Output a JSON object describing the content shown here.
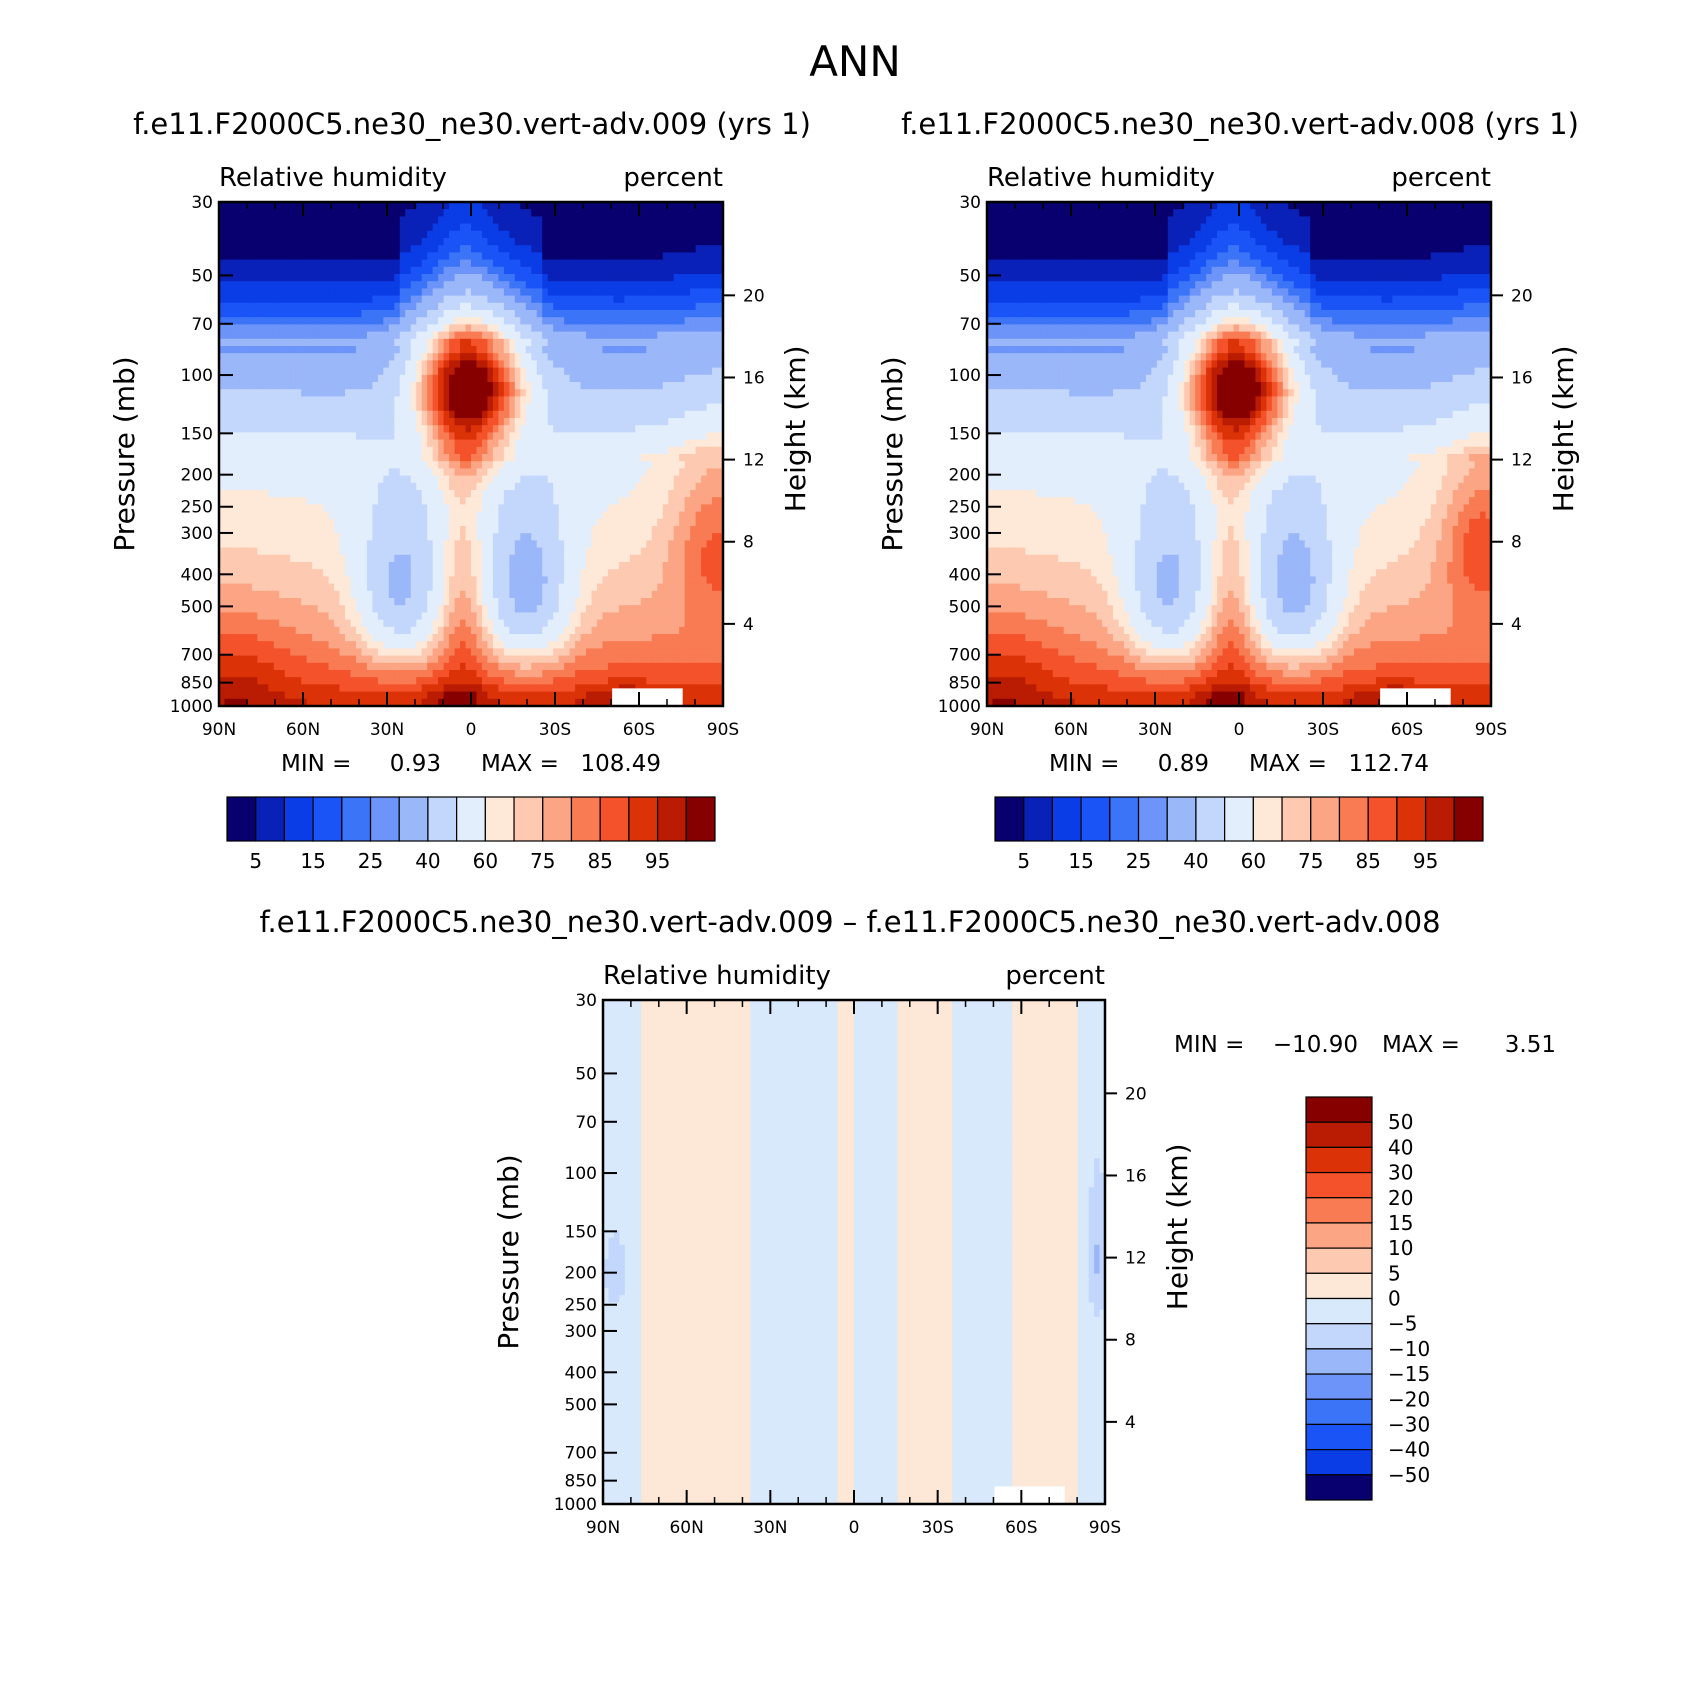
{
  "main_title": "ANN",
  "contour_levels": [
    5,
    10,
    15,
    20,
    25,
    30,
    40,
    50,
    60,
    65,
    70,
    75,
    80,
    85,
    90,
    95
  ],
  "abs_colors": [
    "#08006e",
    "#0a21b8",
    "#0b3de6",
    "#1b54f6",
    "#3c74f7",
    "#6d94f8",
    "#9ab7f9",
    "#c2d7fb",
    "#e2eefc",
    "#fee8d8",
    "#fdc9b0",
    "#fca584",
    "#f97b53",
    "#f3522a",
    "#db3207",
    "#b91c02",
    "#870000"
  ],
  "diff_levels": [
    -50,
    -40,
    -30,
    -20,
    -15,
    -10,
    -5,
    0,
    5,
    10,
    15,
    20,
    30,
    40,
    50
  ],
  "diff_colors": [
    "#08006e",
    "#0b3de6",
    "#1b54f6",
    "#3c74f7",
    "#6d94f8",
    "#9ab7f9",
    "#c2d7fb",
    "#d9e9fc",
    "#fde7d6",
    "#fdc9b0",
    "#fca584",
    "#f97b53",
    "#f3522a",
    "#db3207",
    "#b91c02",
    "#870000"
  ],
  "chart_data": [
    {
      "type": "heatmap",
      "title": "f.e11.F2000C5.ne30_ne30.vert-adv.009 (yrs 1)",
      "left_subtitle": "Relative humidity",
      "right_subtitle": "percent",
      "ylabel": "Pressure (mb)",
      "y2label": "Height (km)",
      "x_ticks": [
        "90N",
        "60N",
        "30N",
        "0",
        "30S",
        "60S",
        "90S"
      ],
      "y_ticks": [
        "30",
        "50",
        "70",
        "100",
        "150",
        "200",
        "250",
        "300",
        "400",
        "500",
        "700",
        "850",
        "1000"
      ],
      "y2_ticks": [
        "20",
        "16",
        "12",
        "8",
        "4"
      ],
      "min_label": "MIN =",
      "min_value": "0.93",
      "max_label": "MAX =",
      "max_value": "108.49",
      "colorbar_labels": [
        "5",
        "15",
        "25",
        "40",
        "60",
        "75",
        "85",
        "95"
      ]
    },
    {
      "type": "heatmap",
      "title": "f.e11.F2000C5.ne30_ne30.vert-adv.008 (yrs 1)",
      "left_subtitle": "Relative humidity",
      "right_subtitle": "percent",
      "ylabel": "Pressure (mb)",
      "y2label": "Height (km)",
      "x_ticks": [
        "90N",
        "60N",
        "30N",
        "0",
        "30S",
        "60S",
        "90S"
      ],
      "y_ticks": [
        "30",
        "50",
        "70",
        "100",
        "150",
        "200",
        "250",
        "300",
        "400",
        "500",
        "700",
        "850",
        "1000"
      ],
      "y2_ticks": [
        "20",
        "16",
        "12",
        "8",
        "4"
      ],
      "min_label": "MIN =",
      "min_value": "0.89",
      "max_label": "MAX =",
      "max_value": "112.74",
      "colorbar_labels": [
        "5",
        "15",
        "25",
        "40",
        "60",
        "75",
        "85",
        "95"
      ]
    },
    {
      "type": "heatmap",
      "title": "f.e11.F2000C5.ne30_ne30.vert-adv.009 – f.e11.F2000C5.ne30_ne30.vert-adv.008",
      "left_subtitle": "Relative humidity",
      "right_subtitle": "percent",
      "ylabel": "Pressure (mb)",
      "y2label": "Height (km)",
      "x_ticks": [
        "90N",
        "60N",
        "30N",
        "0",
        "30S",
        "60S",
        "90S"
      ],
      "y_ticks": [
        "30",
        "50",
        "70",
        "100",
        "150",
        "200",
        "250",
        "300",
        "400",
        "500",
        "700",
        "850",
        "1000"
      ],
      "y2_ticks": [
        "20",
        "16",
        "12",
        "8",
        "4"
      ],
      "min_label": "MIN =",
      "min_value": "−10.90",
      "max_label": "MAX =",
      "max_value": "3.51",
      "colorbar_labels": [
        "50",
        "40",
        "30",
        "20",
        "15",
        "10",
        "5",
        "0",
        "−5",
        "−10",
        "−15",
        "−20",
        "−30",
        "−40",
        "−50"
      ]
    }
  ]
}
